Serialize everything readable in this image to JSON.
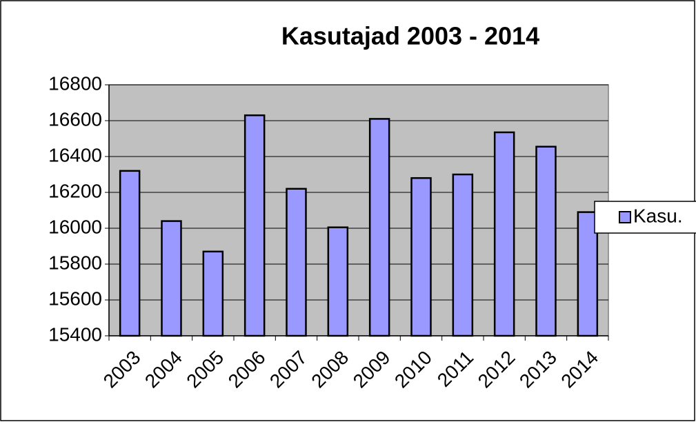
{
  "chart_data": {
    "type": "bar",
    "title": "Kasutajad 2003 - 2014",
    "categories": [
      "2003",
      "2004",
      "2005",
      "2006",
      "2007",
      "2008",
      "2009",
      "2010",
      "2011",
      "2012",
      "2013",
      "2014"
    ],
    "series": [
      {
        "name": "Kasu.",
        "color": "#9999ff",
        "values": [
          16320,
          16040,
          15870,
          16630,
          16220,
          16005,
          16610,
          16280,
          16300,
          16535,
          16455,
          16090
        ]
      }
    ],
    "ylim": [
      15400,
      16800
    ],
    "yticks": [
      15400,
      15600,
      15800,
      16000,
      16200,
      16400,
      16600,
      16800
    ],
    "grid": true,
    "legend": "right"
  }
}
